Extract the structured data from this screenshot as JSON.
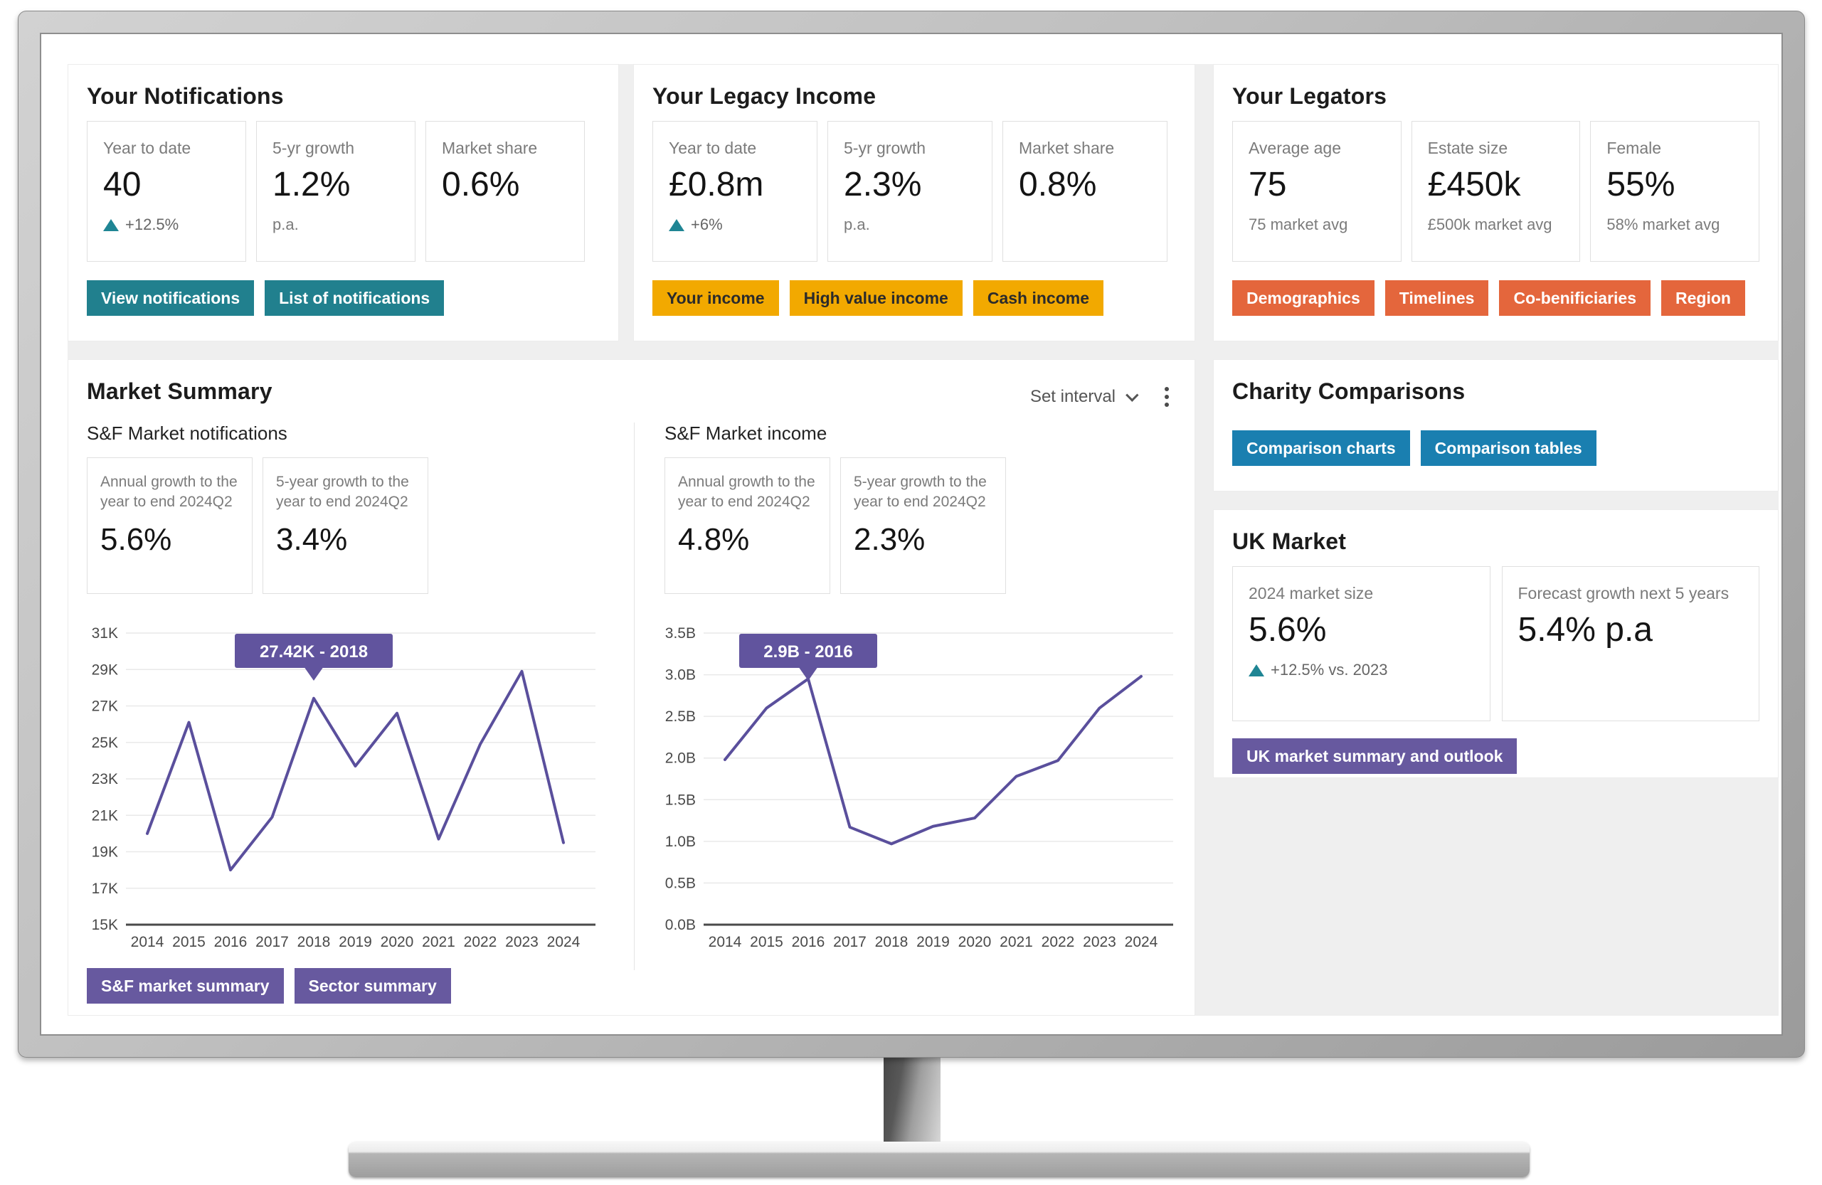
{
  "colors": {
    "teal": "#21808E",
    "amber": "#F2A900",
    "orange": "#E4663C",
    "blue": "#1A7FB0",
    "purple": "#67599F",
    "tooltip_purple": "#61549E",
    "line_purple": "#5A4F9C",
    "delta_teal": "#1F8594",
    "dashboard_bg": "#EFEFEF"
  },
  "panels": {
    "notifications": {
      "title": "Your Notifications",
      "cards": [
        {
          "label": "Year to date",
          "value": "40",
          "delta": "+12.5%"
        },
        {
          "label": "5-yr growth",
          "value": "1.2%",
          "sub": "p.a."
        },
        {
          "label": "Market share",
          "value": "0.6%"
        }
      ],
      "buttons": [
        "View notifications",
        "List of notifications"
      ]
    },
    "legacy_income": {
      "title": "Your Legacy Income",
      "cards": [
        {
          "label": "Year to date",
          "value": "£0.8m",
          "delta": "+6%"
        },
        {
          "label": "5-yr growth",
          "value": "2.3%",
          "sub": "p.a."
        },
        {
          "label": "Market share",
          "value": "0.8%"
        }
      ],
      "buttons": [
        "Your income",
        "High value income",
        "Cash income"
      ]
    },
    "legators": {
      "title": "Your Legators",
      "cards": [
        {
          "label": "Average age",
          "value": "75",
          "sub": "75 market avg"
        },
        {
          "label": "Estate size",
          "value": "£450k",
          "sub": "£500k market avg"
        },
        {
          "label": "Female",
          "value": "55%",
          "sub": "58% market avg"
        }
      ],
      "buttons": [
        "Demographics",
        "Timelines",
        "Co-benificiaries",
        "Region"
      ]
    },
    "market_summary": {
      "title": "Market Summary",
      "set_interval_label": "Set interval",
      "sections": [
        {
          "heading": "S&F Market notifications",
          "stats": [
            {
              "label": "Annual growth to the year to end 2024Q2",
              "value": "5.6%"
            },
            {
              "label": "5-year growth to the year to end 2024Q2",
              "value": "3.4%"
            }
          ]
        },
        {
          "heading": "S&F Market income",
          "stats": [
            {
              "label": "Annual growth to the year to end 2024Q2",
              "value": "4.8%"
            },
            {
              "label": "5-year growth to the year to end 2024Q2",
              "value": "2.3%"
            }
          ]
        }
      ],
      "buttons": [
        "S&F market summary",
        "Sector summary"
      ]
    },
    "charity": {
      "title": "Charity Comparisons",
      "buttons": [
        "Comparison charts",
        "Comparison tables"
      ]
    },
    "uk_market": {
      "title": "UK Market",
      "cards": [
        {
          "label": "2024 market size",
          "value": "5.6%",
          "delta": "+12.5% vs. 2023"
        },
        {
          "label": "Forecast growth next 5 years",
          "value": "5.4% p.a"
        }
      ],
      "button": "UK market summary and outlook"
    }
  },
  "chart_data": [
    {
      "type": "line",
      "title": "S&F Market notifications",
      "x": [
        "2014",
        "2015",
        "2016",
        "2017",
        "2018",
        "2019",
        "2020",
        "2021",
        "2022",
        "2023",
        "2024"
      ],
      "values": [
        20000,
        26100,
        18000,
        20900,
        27420,
        23700,
        26600,
        19700,
        24900,
        28900,
        19500
      ],
      "ylim": [
        15000,
        31000
      ],
      "ytick_step": 2000,
      "ytick_labels": [
        "15K",
        "17K",
        "19K",
        "21K",
        "23K",
        "25K",
        "27K",
        "29K",
        "31K"
      ],
      "xlabel": "",
      "ylabel": "",
      "grid": true,
      "legend": "none",
      "tooltip": {
        "index": 4,
        "text": "27.42K - 2018"
      }
    },
    {
      "type": "line",
      "title": "S&F Market income",
      "x": [
        "2014",
        "2015",
        "2016",
        "2017",
        "2018",
        "2019",
        "2020",
        "2021",
        "2022",
        "2023",
        "2024"
      ],
      "values": [
        1.98,
        2.6,
        2.95,
        1.17,
        0.97,
        1.18,
        1.28,
        1.78,
        1.97,
        2.6,
        2.98
      ],
      "ylim": [
        0,
        3.5
      ],
      "ytick_step": 0.5,
      "ytick_labels": [
        "0.0B",
        "0.5B",
        "1.0B",
        "1.5B",
        "2.0B",
        "2.5B",
        "3.0B",
        "3.5B"
      ],
      "xlabel": "",
      "ylabel": "",
      "grid": true,
      "legend": "none",
      "tooltip": {
        "index": 2,
        "text": "2.9B - 2016"
      }
    }
  ]
}
